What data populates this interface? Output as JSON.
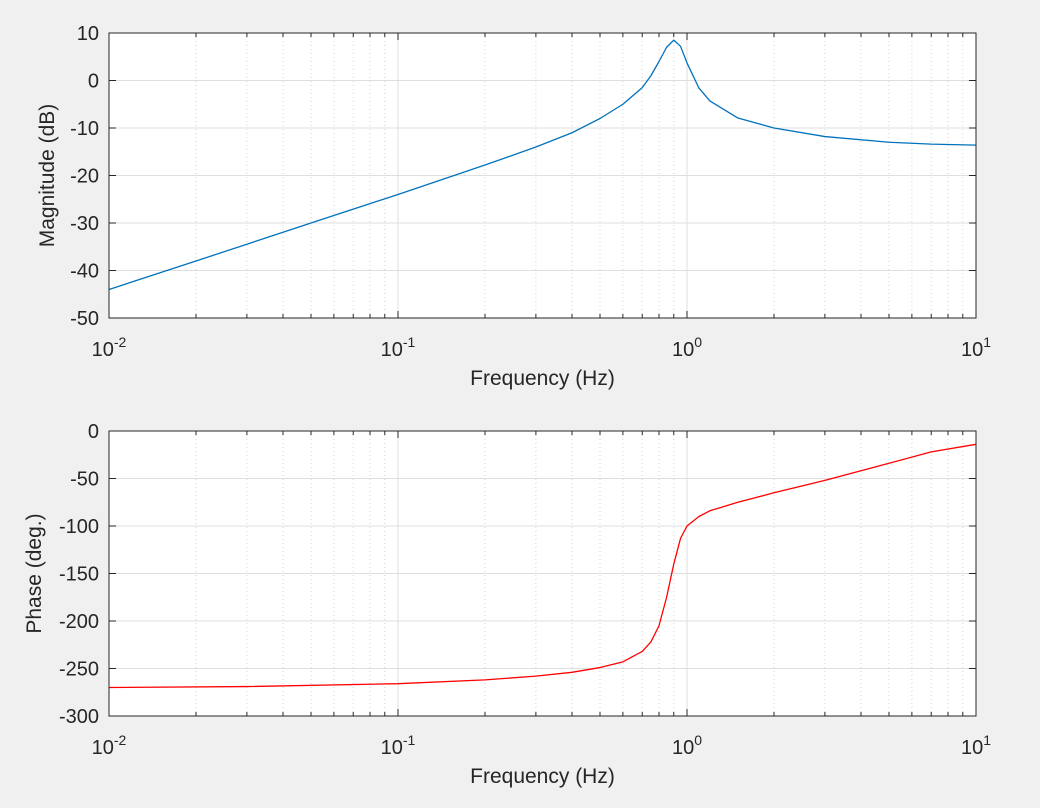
{
  "chart_data": [
    {
      "type": "line",
      "xlabel": "Frequency (Hz)",
      "ylabel": "Magnitude (dB)",
      "xscale": "log",
      "xlim": [
        0.01,
        10
      ],
      "ylim": [
        -50,
        10
      ],
      "grid": true,
      "yticks": [
        "10",
        "0",
        "-10",
        "-20",
        "-30",
        "-40",
        "-50"
      ],
      "xticks": [
        {
          "base": "10",
          "exp": "-2"
        },
        {
          "base": "10",
          "exp": "-1"
        },
        {
          "base": "10",
          "exp": "0"
        },
        {
          "base": "10",
          "exp": "1"
        }
      ],
      "series": [
        {
          "color": "#0072bd",
          "x": [
            0.01,
            0.02,
            0.05,
            0.1,
            0.2,
            0.3,
            0.4,
            0.5,
            0.6,
            0.7,
            0.75,
            0.8,
            0.85,
            0.9,
            0.95,
            1.0,
            1.1,
            1.2,
            1.5,
            2,
            3,
            5,
            7,
            10
          ],
          "y": [
            -44,
            -38,
            -30,
            -24,
            -17.8,
            -14,
            -11,
            -8,
            -5,
            -1.5,
            1,
            4,
            7,
            8.5,
            7.2,
            3.7,
            -1.6,
            -4.3,
            -7.9,
            -10,
            -11.8,
            -13,
            -13.4,
            -13.6
          ]
        }
      ]
    },
    {
      "type": "line",
      "xlabel": "Frequency (Hz)",
      "ylabel": "Phase (deg.)",
      "xscale": "log",
      "xlim": [
        0.01,
        10
      ],
      "ylim": [
        -300,
        0
      ],
      "grid": true,
      "yticks": [
        "0",
        "-50",
        "-100",
        "-150",
        "-200",
        "-250",
        "-300"
      ],
      "xticks": [
        {
          "base": "10",
          "exp": "-2"
        },
        {
          "base": "10",
          "exp": "-1"
        },
        {
          "base": "10",
          "exp": "0"
        },
        {
          "base": "10",
          "exp": "1"
        }
      ],
      "series": [
        {
          "color": "#ff0000",
          "x": [
            0.01,
            0.03,
            0.1,
            0.2,
            0.3,
            0.4,
            0.5,
            0.6,
            0.7,
            0.75,
            0.8,
            0.85,
            0.9,
            0.95,
            1.0,
            1.1,
            1.2,
            1.5,
            2,
            3,
            5,
            7,
            10
          ],
          "y": [
            -270,
            -269,
            -266,
            -262,
            -258,
            -254,
            -249,
            -243,
            -232,
            -222,
            -205,
            -175,
            -140,
            -113,
            -100,
            -90,
            -84,
            -75,
            -65,
            -52,
            -34,
            -22,
            -14
          ]
        }
      ]
    }
  ]
}
